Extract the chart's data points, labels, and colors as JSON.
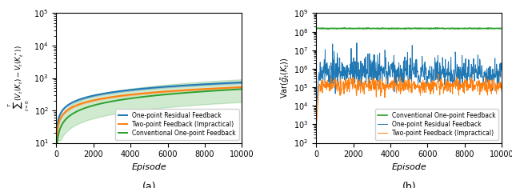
{
  "left": {
    "title": "(a)",
    "xlabel": "Episode",
    "ylabel": "$\\sum_{t=0}^{T}(V_t(K_t) - V_t(K_t^*))$",
    "xlim": [
      0,
      10000
    ],
    "ylim": [
      10,
      100000
    ],
    "colors": {
      "blue": "#1f77b4",
      "orange": "#ff7f0e",
      "green": "#2ca02c"
    },
    "legend": [
      "One-point Residual Feedback",
      "Two-point Feedback (Impractical)",
      "Conventional One-point Feedback"
    ]
  },
  "right": {
    "title": "(b)",
    "xlabel": "Episode",
    "ylabel": "$\\mathrm{Var}(\\tilde{g}_t(K_t))$",
    "xlim": [
      0,
      10000
    ],
    "ylim": [
      100,
      1000000000
    ],
    "colors": {
      "blue": "#1f77b4",
      "orange": "#ff7f0e",
      "green": "#2ca02c"
    },
    "legend": [
      "One-point Residual Feedback",
      "Two-point Feedback (Impractical)",
      "Conventional One-point Feedback"
    ]
  }
}
